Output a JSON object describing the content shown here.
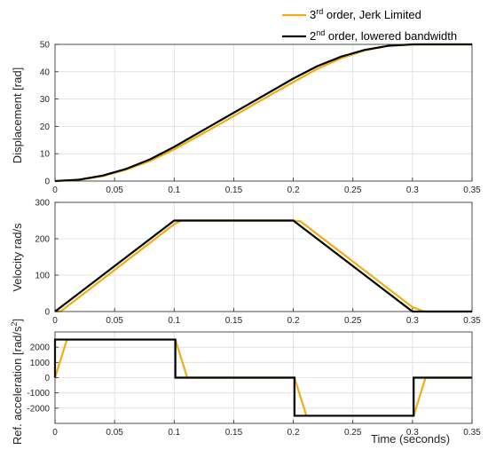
{
  "legend": {
    "entries": [
      {
        "base": "3",
        "sup": "rd",
        "rest": " order, Jerk Limited",
        "color": "#f0ad12"
      },
      {
        "base": "2",
        "sup": "nd",
        "rest": " order, lowered bandwidth",
        "color": "#000000"
      }
    ]
  },
  "chart_data": [
    {
      "type": "line",
      "ylabel": "Displacement [rad]",
      "xlabel": "",
      "xlim": [
        0,
        0.35
      ],
      "ylim": [
        0,
        50
      ],
      "xticks": [
        "0",
        "0.05",
        "0.1",
        "0.15",
        "0.2",
        "0.25",
        "0.3",
        "0.35"
      ],
      "yticks": [
        "0",
        "10",
        "20",
        "30",
        "40",
        "50"
      ],
      "grid": true,
      "series": [
        {
          "name": "3rd order, Jerk Limited",
          "color": "#f0ad12",
          "x": [
            0,
            0.02,
            0.04,
            0.06,
            0.08,
            0.1,
            0.12,
            0.14,
            0.16,
            0.18,
            0.2,
            0.22,
            0.24,
            0.26,
            0.28,
            0.3,
            0.31,
            0.35
          ],
          "y": [
            0,
            0.4,
            1.8,
            4.2,
            7.4,
            11.6,
            16.4,
            21.3,
            26.3,
            31.3,
            36.2,
            41.0,
            44.9,
            47.8,
            49.5,
            49.95,
            50,
            50
          ]
        },
        {
          "name": "2nd order, lowered bandwidth",
          "color": "#000000",
          "x": [
            0,
            0.02,
            0.04,
            0.06,
            0.08,
            0.1,
            0.12,
            0.14,
            0.16,
            0.18,
            0.2,
            0.22,
            0.24,
            0.26,
            0.28,
            0.3,
            0.35
          ],
          "y": [
            0,
            0.5,
            2.0,
            4.5,
            8.0,
            12.5,
            17.5,
            22.5,
            27.5,
            32.5,
            37.5,
            42.0,
            45.5,
            48.0,
            49.5,
            50,
            50
          ]
        }
      ]
    },
    {
      "type": "line",
      "ylabel": "Velocity rad/s",
      "xlabel": "",
      "xlim": [
        0,
        0.35
      ],
      "ylim": [
        0,
        300
      ],
      "xticks": [
        "0",
        "0.05",
        "0.1",
        "0.15",
        "0.2",
        "0.25",
        "0.3",
        "0.35"
      ],
      "yticks": [
        "0",
        "100",
        "200",
        "300"
      ],
      "grid": true,
      "series": [
        {
          "name": "3rd order, Jerk Limited",
          "color": "#f0ad12",
          "x": [
            0,
            0.005,
            0.1,
            0.106,
            0.2,
            0.206,
            0.3,
            0.31,
            0.35
          ],
          "y": [
            0,
            1,
            240,
            250,
            250,
            248,
            12,
            0,
            0
          ]
        },
        {
          "name": "2nd order, lowered bandwidth",
          "color": "#000000",
          "x": [
            0,
            0.1,
            0.2,
            0.3,
            0.35
          ],
          "y": [
            0,
            250,
            250,
            0,
            0
          ]
        }
      ]
    },
    {
      "type": "line",
      "ylabel_parts": {
        "base": "Ref. acceleration  [rad/s",
        "sup": "2",
        "end": "]"
      },
      "xlabel": "Time (seconds)",
      "xlim": [
        0,
        0.35
      ],
      "ylim": [
        -3000,
        3000
      ],
      "xticks": [
        "0",
        "0.05",
        "0.1",
        "0.15",
        "0.2",
        "0.25",
        "0.3",
        "0.35"
      ],
      "ytick_values": [
        -2000,
        -1000,
        0,
        1000,
        2000
      ],
      "yticks": [
        "-2000",
        "-1000",
        "0",
        "1000",
        "2000"
      ],
      "grid": true,
      "series": [
        {
          "name": "3rd order, Jerk Limited",
          "color": "#f0ad12",
          "x": [
            0,
            0.01,
            0.101,
            0.111,
            0.201,
            0.211,
            0.301,
            0.311,
            0.35
          ],
          "y": [
            0,
            2500,
            2500,
            0,
            0,
            -2500,
            -2500,
            0,
            0
          ]
        },
        {
          "name": "2nd order, lowered bandwidth",
          "color": "#000000",
          "x": [
            0,
            0,
            0.101,
            0.101,
            0.201,
            0.201,
            0.301,
            0.301,
            0.35
          ],
          "y": [
            0,
            2500,
            2500,
            0,
            0,
            -2500,
            -2500,
            0,
            0
          ]
        }
      ]
    }
  ]
}
